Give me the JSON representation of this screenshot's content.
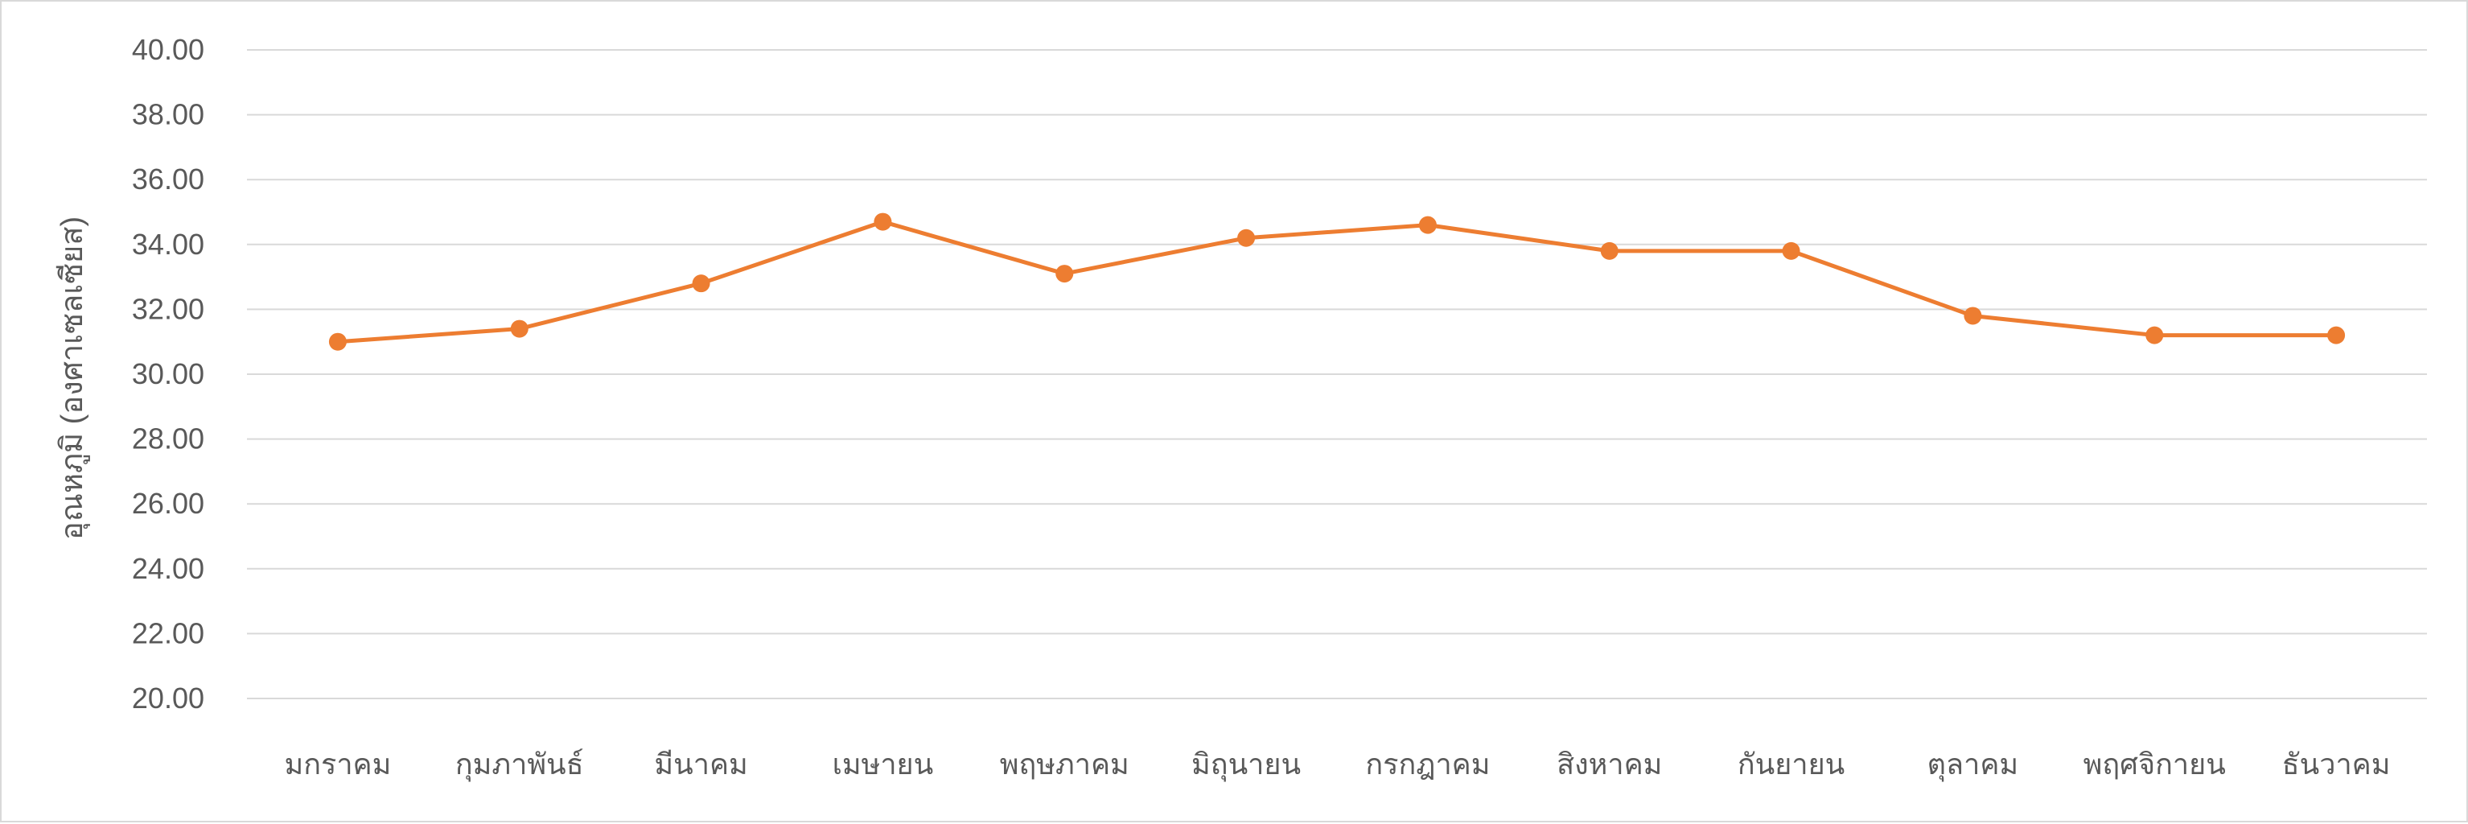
{
  "chart_data": {
    "type": "line",
    "title": "",
    "xlabel": "",
    "ylabel": "อุณหภูมิ (องศาเซลเซียส)",
    "ylim": [
      20,
      40
    ],
    "ytick_step": 2,
    "ytick_labels": [
      "20.00",
      "22.00",
      "24.00",
      "26.00",
      "28.00",
      "30.00",
      "32.00",
      "34.00",
      "36.00",
      "38.00",
      "40.00"
    ],
    "grid": true,
    "legend": "none",
    "categories": [
      "มกราคม",
      "กุมภาพันธ์",
      "มีนาคม",
      "เมษายน",
      "พฤษภาคม",
      "มิถุนายน",
      "กรกฎาคม",
      "สิงหาคม",
      "กันยายน",
      "ตุลาคม",
      "พฤศจิกายน",
      "ธันวาคม"
    ],
    "series": [
      {
        "color": "#ED7D31",
        "values": [
          31.0,
          31.4,
          32.8,
          34.7,
          33.1,
          34.2,
          34.6,
          33.8,
          33.8,
          31.8,
          31.2,
          31.2
        ]
      }
    ],
    "colors": {
      "grid": "#d9d9d9",
      "text": "#595959",
      "series": "#ED7D31"
    }
  }
}
